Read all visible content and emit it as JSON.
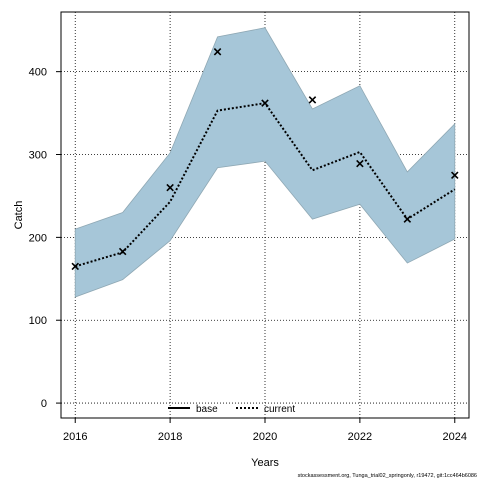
{
  "chart_data": {
    "type": "line",
    "xlabel": "Years",
    "ylabel": "Catch",
    "x": [
      2016,
      2017,
      2018,
      2019,
      2020,
      2021,
      2022,
      2023,
      2024
    ],
    "xlim": [
      2015.7,
      2024.3
    ],
    "ylim": [
      -18,
      472
    ],
    "x_ticks": [
      2016,
      2018,
      2020,
      2022,
      2024
    ],
    "y_ticks": [
      0,
      100,
      200,
      300,
      400
    ],
    "grid": true,
    "legend_position": "bottom",
    "series": [
      {
        "name": "base",
        "style": "solid",
        "color": "#000000",
        "values": null
      },
      {
        "name": "current",
        "style": "dotted",
        "color": "#000000",
        "band_color": "#a6c6d8",
        "values": [
          165,
          182,
          243,
          353,
          362,
          281,
          303,
          222,
          258
        ],
        "lower": [
          128,
          149,
          196,
          284,
          292,
          222,
          240,
          169,
          198
        ],
        "upper": [
          210,
          230,
          302,
          442,
          453,
          355,
          383,
          279,
          337
        ]
      }
    ],
    "observed": {
      "marker": "x",
      "values": [
        165,
        183,
        260,
        424,
        362,
        366,
        289,
        222,
        275
      ]
    },
    "footnote": "stockassessment.org, Tunga_trial02_springonly, r19472, git:1cc464b6086"
  }
}
